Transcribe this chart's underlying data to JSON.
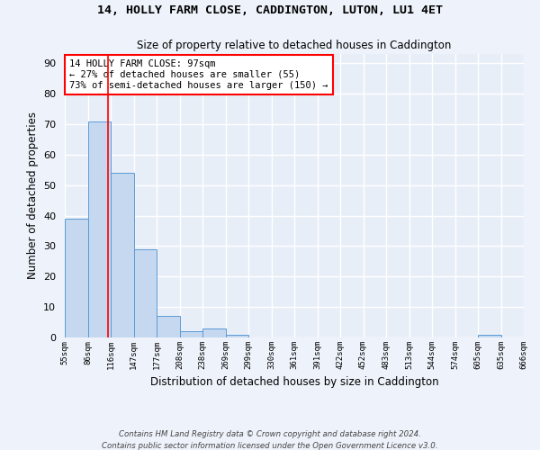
{
  "title": "14, HOLLY FARM CLOSE, CADDINGTON, LUTON, LU1 4ET",
  "subtitle": "Size of property relative to detached houses in Caddington",
  "xlabel": "Distribution of detached houses by size in Caddington",
  "ylabel": "Number of detached properties",
  "bar_values": [
    39,
    71,
    54,
    29,
    7,
    2,
    3,
    1,
    0,
    0,
    0,
    0,
    0,
    0,
    0,
    0,
    0,
    0,
    1,
    0
  ],
  "bar_labels": [
    "55sqm",
    "86sqm",
    "116sqm",
    "147sqm",
    "177sqm",
    "208sqm",
    "238sqm",
    "269sqm",
    "299sqm",
    "330sqm",
    "361sqm",
    "391sqm",
    "422sqm",
    "452sqm",
    "483sqm",
    "513sqm",
    "544sqm",
    "574sqm",
    "605sqm",
    "635sqm",
    "666sqm"
  ],
  "bar_color": "#c5d8f0",
  "bar_edge_color": "#5b9bd5",
  "red_line_x": 1.37,
  "annotation_box_text": "14 HOLLY FARM CLOSE: 97sqm\n← 27% of detached houses are smaller (55)\n73% of semi-detached houses are larger (150) →",
  "ylim": [
    0,
    93
  ],
  "yticks": [
    0,
    10,
    20,
    30,
    40,
    50,
    60,
    70,
    80,
    90
  ],
  "fig_bg_color": "#eef3fb",
  "ax_bg_color": "#e8eef8",
  "grid_color": "#ffffff",
  "footer_line1": "Contains HM Land Registry data © Crown copyright and database right 2024.",
  "footer_line2": "Contains public sector information licensed under the Open Government Licence v3.0."
}
